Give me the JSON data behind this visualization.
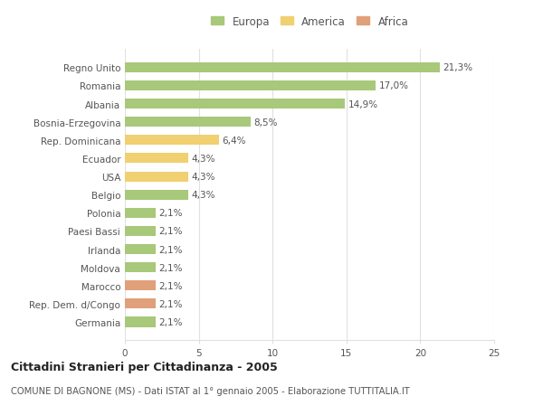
{
  "categories": [
    "Germania",
    "Rep. Dem. d/Congo",
    "Marocco",
    "Moldova",
    "Irlanda",
    "Paesi Bassi",
    "Polonia",
    "Belgio",
    "USA",
    "Ecuador",
    "Rep. Dominicana",
    "Bosnia-Erzegovina",
    "Albania",
    "Romania",
    "Regno Unito"
  ],
  "values": [
    2.1,
    2.1,
    2.1,
    2.1,
    2.1,
    2.1,
    2.1,
    4.3,
    4.3,
    4.3,
    6.4,
    8.5,
    14.9,
    17.0,
    21.3
  ],
  "labels": [
    "2,1%",
    "2,1%",
    "2,1%",
    "2,1%",
    "2,1%",
    "2,1%",
    "2,1%",
    "4,3%",
    "4,3%",
    "4,3%",
    "6,4%",
    "8,5%",
    "14,9%",
    "17,0%",
    "21,3%"
  ],
  "colors": [
    "#a8c87a",
    "#e0a07a",
    "#e0a07a",
    "#a8c87a",
    "#a8c87a",
    "#a8c87a",
    "#a8c87a",
    "#a8c87a",
    "#f0d070",
    "#f0d070",
    "#f0d070",
    "#a8c87a",
    "#a8c87a",
    "#a8c87a",
    "#a8c87a"
  ],
  "legend_colors_order": [
    "Europa",
    "America",
    "Africa"
  ],
  "legend_colors": {
    "Europa": "#a8c87a",
    "America": "#f0d070",
    "Africa": "#e0a07a"
  },
  "xlim": [
    0,
    25
  ],
  "xticks": [
    0,
    5,
    10,
    15,
    20,
    25
  ],
  "title_bold": "Cittadini Stranieri per Cittadinanza - 2005",
  "subtitle": "COMUNE DI BAGNONE (MS) - Dati ISTAT al 1° gennaio 2005 - Elaborazione TUTTITALIA.IT",
  "background_color": "#ffffff",
  "bar_height": 0.55,
  "grid_color": "#e0e0e0",
  "text_color": "#555555",
  "label_fontsize": 7.5,
  "tick_fontsize": 7.5,
  "legend_fontsize": 8.5
}
